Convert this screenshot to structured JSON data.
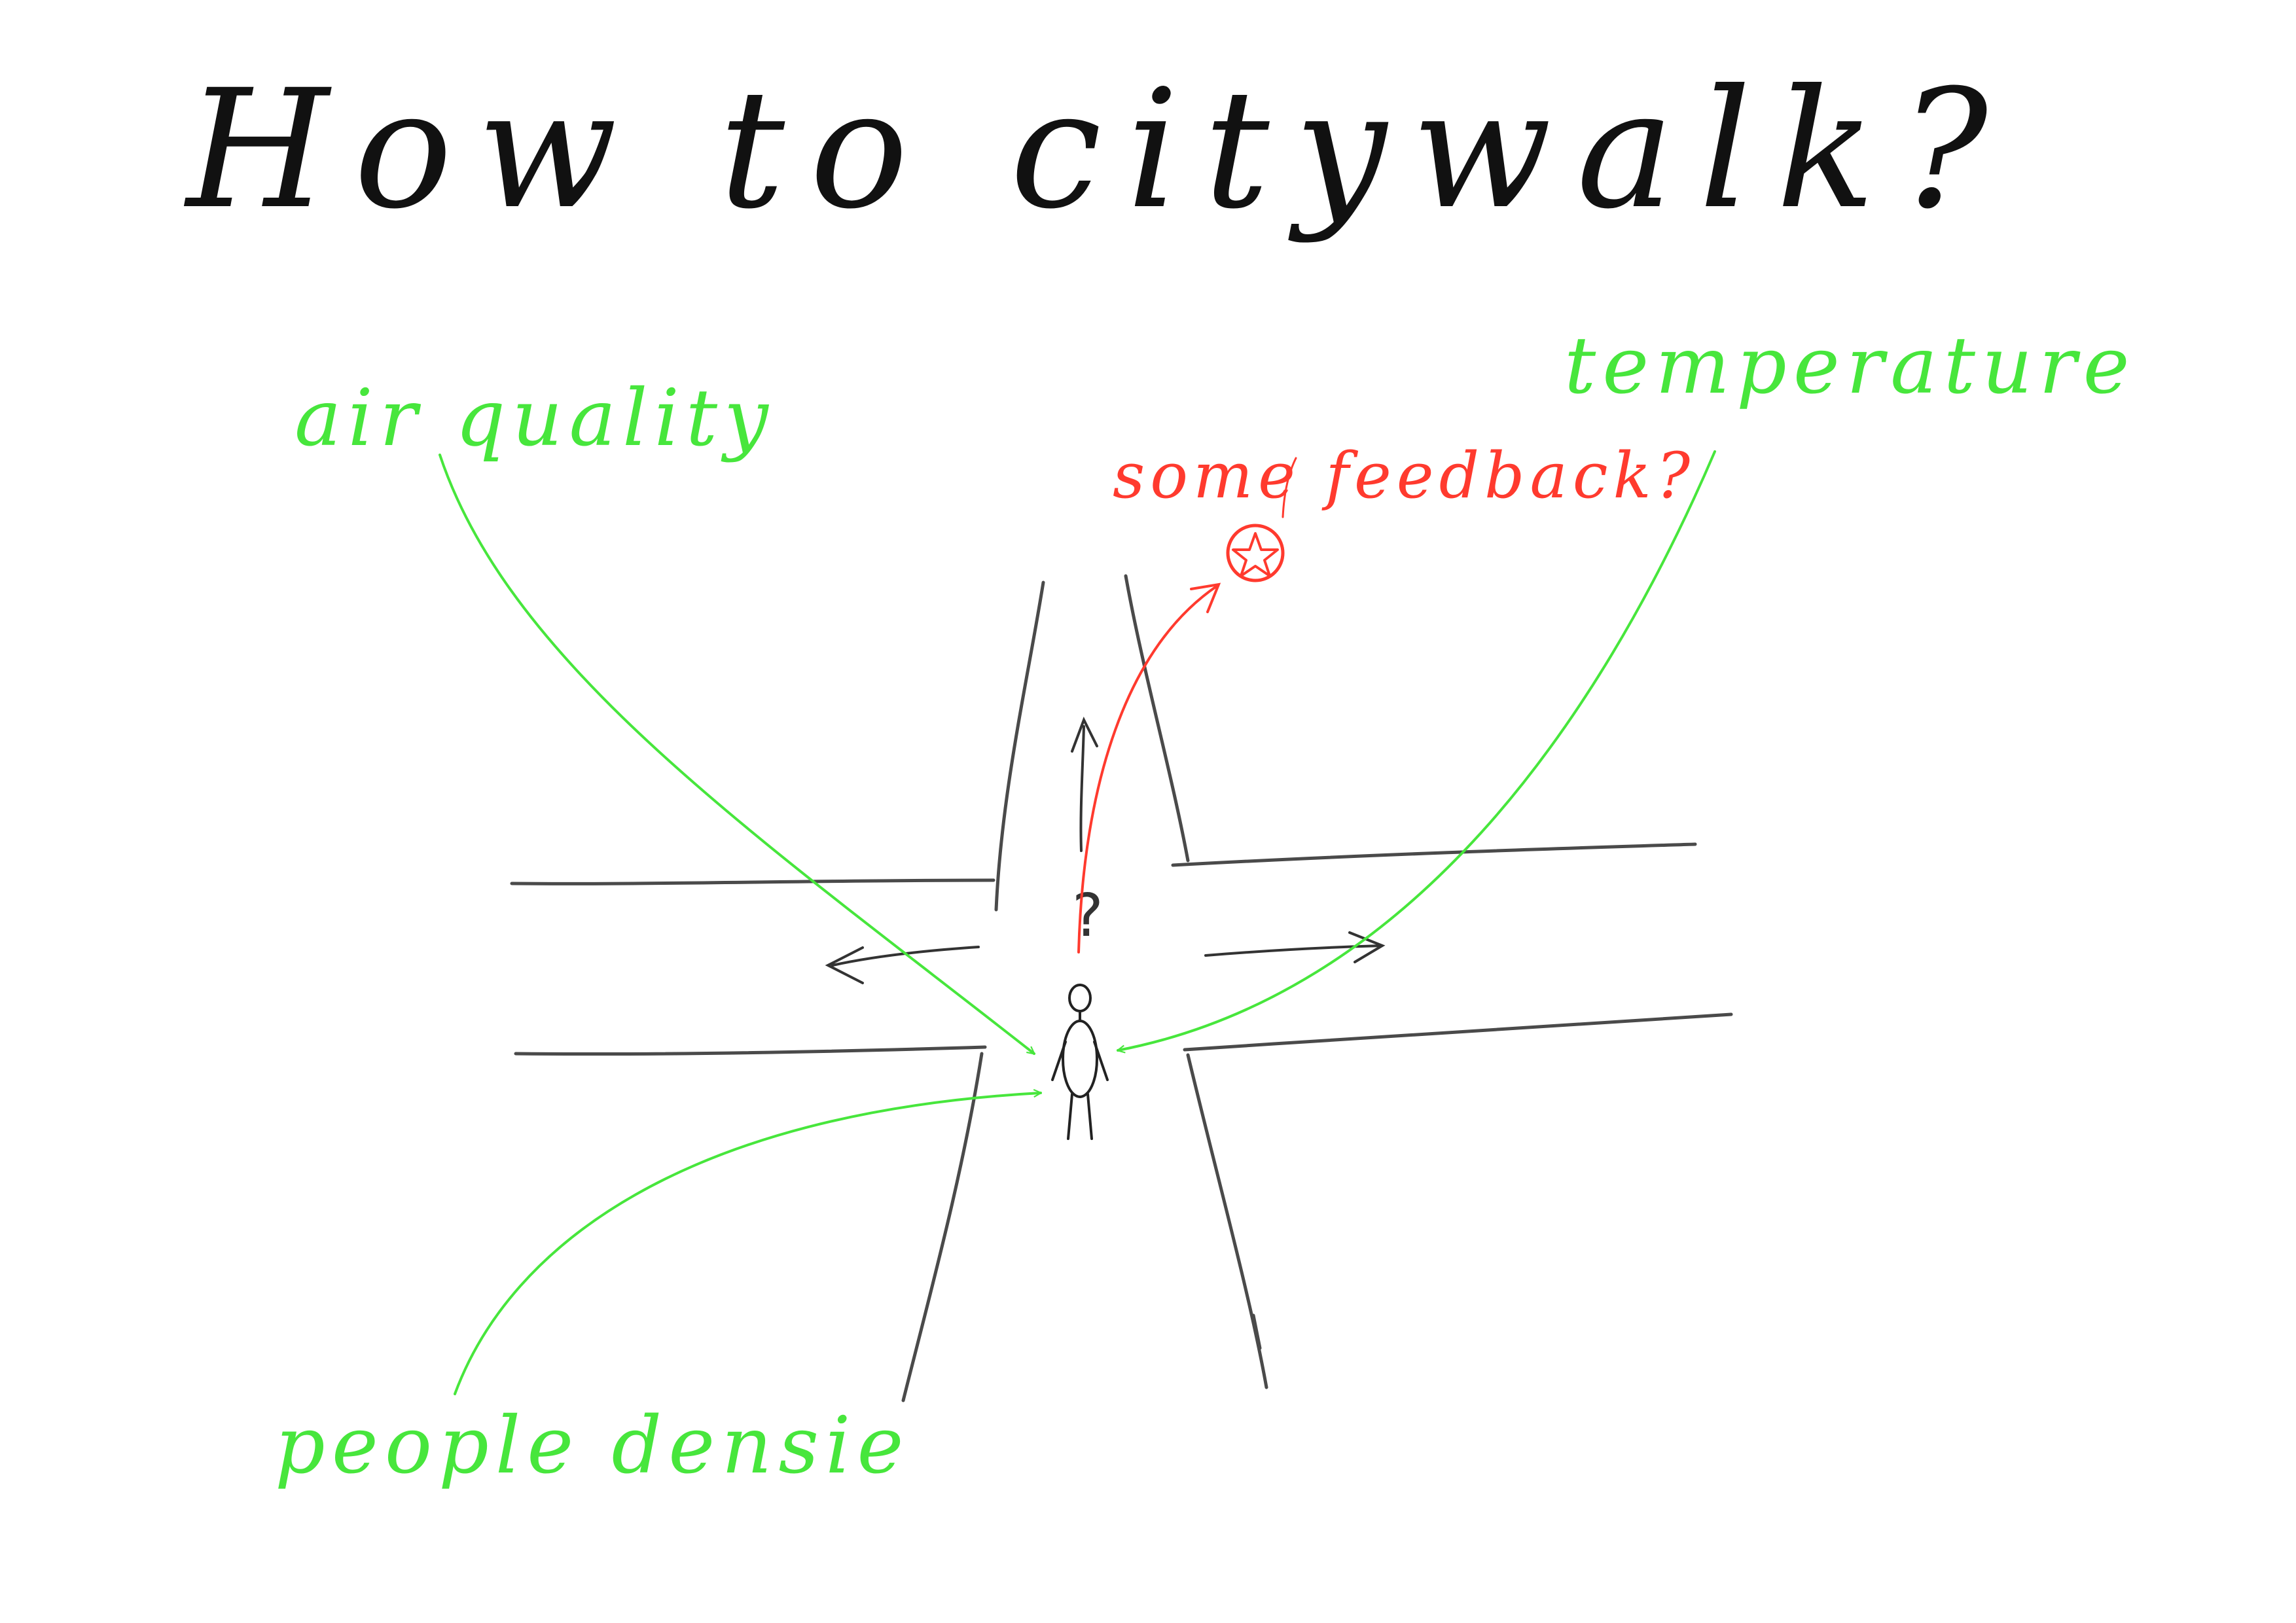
{
  "title": "How to citywalk?",
  "factors": {
    "air_quality": "air quality",
    "temperature": "temperature",
    "people_density": "people densie"
  },
  "feedback": {
    "label": "some feedback?",
    "marker": "star-icon"
  },
  "question_mark": "?",
  "colors": {
    "ink": "#111111",
    "road": "#4a4a4a",
    "factor": "#47e63c",
    "feedback": "#ff3a2e",
    "background": "#ffffff"
  }
}
